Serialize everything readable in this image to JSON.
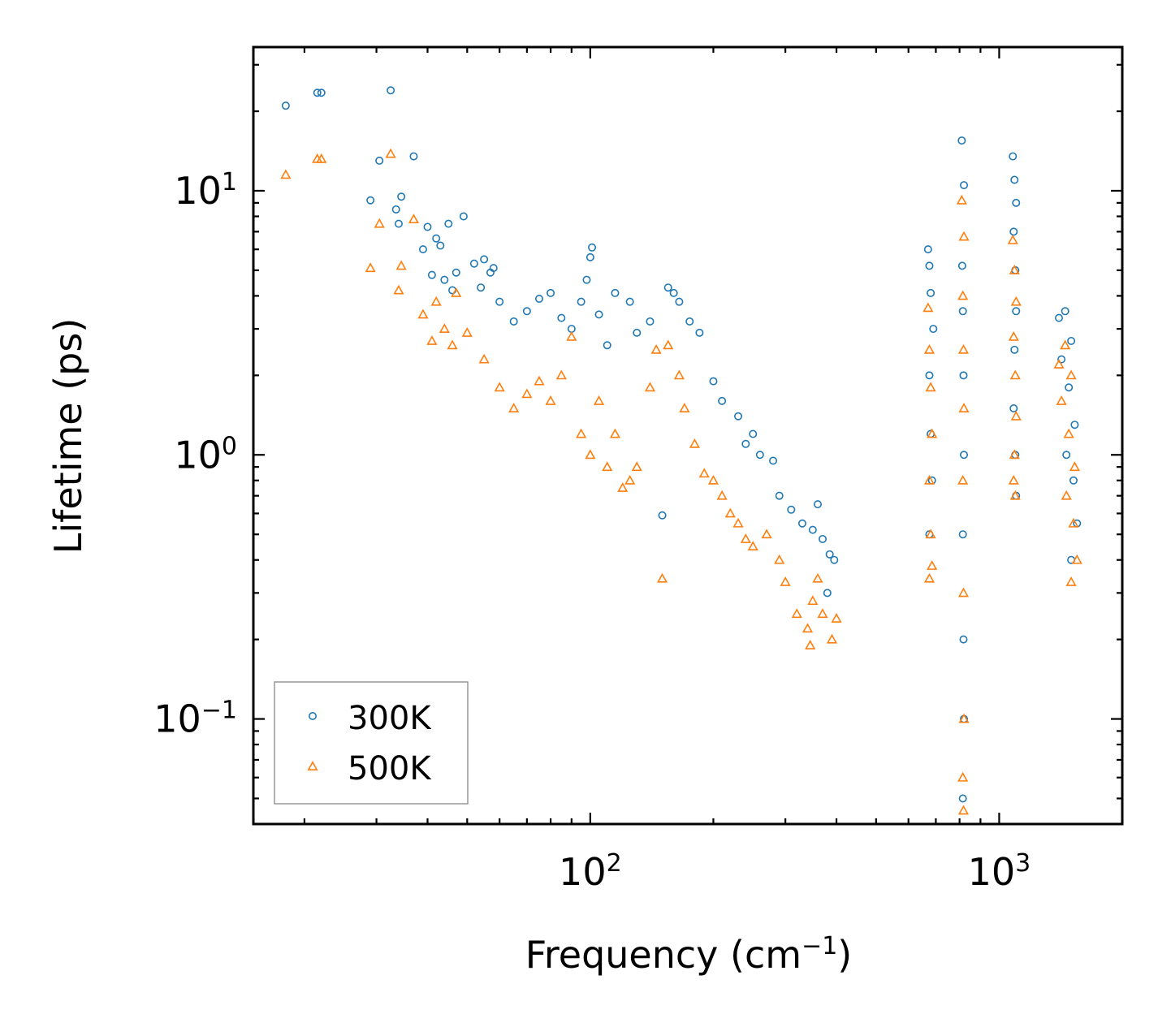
{
  "chart_data": {
    "type": "scatter",
    "title": "",
    "xlabel": "Frequency (cm",
    "xlabel_sup": "−1",
    "xlabel_tail": ")",
    "ylabel": "Lifetime (ps)",
    "xscale": "log",
    "yscale": "log",
    "xlim": [
      15,
      2000
    ],
    "ylim": [
      0.04,
      35
    ],
    "x_ticks": [
      {
        "value": 100,
        "base": "10",
        "exp": "2"
      },
      {
        "value": 1000,
        "base": "10",
        "exp": "3"
      }
    ],
    "y_ticks": [
      {
        "value": 0.1,
        "base": "10",
        "exp": "−1"
      },
      {
        "value": 1,
        "base": "10",
        "exp": "0"
      },
      {
        "value": 10,
        "base": "10",
        "exp": "1"
      }
    ],
    "legend_position": "lower-left",
    "series": [
      {
        "name": "300K",
        "marker": "circle",
        "color": "#1f77b4",
        "points": [
          [
            18,
            21
          ],
          [
            21.5,
            23.5
          ],
          [
            22,
            23.5
          ],
          [
            29,
            9.2
          ],
          [
            30.5,
            13
          ],
          [
            32.5,
            24
          ],
          [
            33.5,
            8.5
          ],
          [
            34,
            7.5
          ],
          [
            34.5,
            9.5
          ],
          [
            37,
            13.5
          ],
          [
            39,
            6
          ],
          [
            40,
            7.3
          ],
          [
            41,
            4.8
          ],
          [
            42,
            6.6
          ],
          [
            43,
            6.2
          ],
          [
            44,
            4.6
          ],
          [
            45,
            7.5
          ],
          [
            46,
            4.2
          ],
          [
            47,
            4.9
          ],
          [
            49,
            8
          ],
          [
            52,
            5.3
          ],
          [
            54,
            4.3
          ],
          [
            55,
            5.5
          ],
          [
            57,
            4.9
          ],
          [
            58,
            5.1
          ],
          [
            60,
            3.8
          ],
          [
            65,
            3.2
          ],
          [
            70,
            3.5
          ],
          [
            75,
            3.9
          ],
          [
            80,
            4.1
          ],
          [
            85,
            3.3
          ],
          [
            90,
            3.0
          ],
          [
            95,
            3.8
          ],
          [
            98,
            4.6
          ],
          [
            100,
            5.6
          ],
          [
            101,
            6.1
          ],
          [
            105,
            3.4
          ],
          [
            110,
            2.6
          ],
          [
            115,
            4.1
          ],
          [
            125,
            3.8
          ],
          [
            130,
            2.9
          ],
          [
            140,
            3.2
          ],
          [
            150,
            0.59
          ],
          [
            155,
            4.3
          ],
          [
            160,
            4.1
          ],
          [
            165,
            3.8
          ],
          [
            175,
            3.2
          ],
          [
            185,
            2.9
          ],
          [
            200,
            1.9
          ],
          [
            210,
            1.6
          ],
          [
            230,
            1.4
          ],
          [
            240,
            1.1
          ],
          [
            250,
            1.2
          ],
          [
            260,
            1.0
          ],
          [
            280,
            0.95
          ],
          [
            290,
            0.7
          ],
          [
            310,
            0.62
          ],
          [
            330,
            0.55
          ],
          [
            350,
            0.52
          ],
          [
            370,
            0.48
          ],
          [
            385,
            0.42
          ],
          [
            395,
            0.4
          ],
          [
            360,
            0.65
          ],
          [
            380,
            0.3
          ],
          [
            670,
            6.0
          ],
          [
            675,
            5.2
          ],
          [
            680,
            4.1
          ],
          [
            690,
            3.0
          ],
          [
            675,
            2.0
          ],
          [
            680,
            1.2
          ],
          [
            685,
            0.8
          ],
          [
            675,
            0.5
          ],
          [
            810,
            15.5
          ],
          [
            820,
            10.5
          ],
          [
            812,
            5.2
          ],
          [
            815,
            3.5
          ],
          [
            818,
            2.0
          ],
          [
            820,
            1.0
          ],
          [
            815,
            0.5
          ],
          [
            818,
            0.2
          ],
          [
            820,
            0.1
          ],
          [
            815,
            0.05
          ],
          [
            1080,
            13.5
          ],
          [
            1090,
            11
          ],
          [
            1100,
            9
          ],
          [
            1085,
            7
          ],
          [
            1095,
            5
          ],
          [
            1100,
            3.5
          ],
          [
            1090,
            2.5
          ],
          [
            1085,
            1.5
          ],
          [
            1095,
            1.0
          ],
          [
            1100,
            0.7
          ],
          [
            1400,
            3.3
          ],
          [
            1450,
            3.5
          ],
          [
            1500,
            2.7
          ],
          [
            1420,
            2.3
          ],
          [
            1480,
            1.8
          ],
          [
            1530,
            1.3
          ],
          [
            1460,
            1.0
          ],
          [
            1520,
            0.8
          ],
          [
            1550,
            0.55
          ],
          [
            1500,
            0.4
          ]
        ]
      },
      {
        "name": "500K",
        "marker": "triangle",
        "color": "#ff7f0e",
        "points": [
          [
            18,
            11.5
          ],
          [
            21.5,
            13.2
          ],
          [
            22,
            13.2
          ],
          [
            29,
            5.1
          ],
          [
            30.5,
            7.5
          ],
          [
            32.5,
            13.8
          ],
          [
            34,
            4.2
          ],
          [
            34.5,
            5.2
          ],
          [
            37,
            7.8
          ],
          [
            39,
            3.4
          ],
          [
            41,
            2.7
          ],
          [
            42,
            3.8
          ],
          [
            44,
            3.0
          ],
          [
            46,
            2.6
          ],
          [
            47,
            4.1
          ],
          [
            50,
            2.9
          ],
          [
            55,
            2.3
          ],
          [
            60,
            1.8
          ],
          [
            65,
            1.5
          ],
          [
            70,
            1.7
          ],
          [
            75,
            1.9
          ],
          [
            80,
            1.6
          ],
          [
            85,
            2.0
          ],
          [
            90,
            2.8
          ],
          [
            95,
            1.2
          ],
          [
            100,
            1.0
          ],
          [
            105,
            1.6
          ],
          [
            110,
            0.9
          ],
          [
            115,
            1.2
          ],
          [
            120,
            0.75
          ],
          [
            125,
            0.8
          ],
          [
            130,
            0.9
          ],
          [
            140,
            1.8
          ],
          [
            145,
            2.5
          ],
          [
            150,
            0.34
          ],
          [
            155,
            2.6
          ],
          [
            165,
            2.0
          ],
          [
            170,
            1.5
          ],
          [
            180,
            1.1
          ],
          [
            190,
            0.85
          ],
          [
            200,
            0.8
          ],
          [
            210,
            0.7
          ],
          [
            220,
            0.6
          ],
          [
            230,
            0.55
          ],
          [
            240,
            0.48
          ],
          [
            250,
            0.45
          ],
          [
            270,
            0.5
          ],
          [
            290,
            0.4
          ],
          [
            300,
            0.33
          ],
          [
            320,
            0.25
          ],
          [
            340,
            0.22
          ],
          [
            350,
            0.28
          ],
          [
            360,
            0.34
          ],
          [
            370,
            0.25
          ],
          [
            390,
            0.2
          ],
          [
            400,
            0.24
          ],
          [
            345,
            0.19
          ],
          [
            670,
            3.6
          ],
          [
            675,
            2.5
          ],
          [
            680,
            1.8
          ],
          [
            685,
            1.2
          ],
          [
            675,
            0.8
          ],
          [
            680,
            0.5
          ],
          [
            685,
            0.38
          ],
          [
            675,
            0.34
          ],
          [
            810,
            9.2
          ],
          [
            820,
            6.7
          ],
          [
            815,
            4.0
          ],
          [
            818,
            2.5
          ],
          [
            820,
            1.5
          ],
          [
            815,
            0.8
          ],
          [
            818,
            0.3
          ],
          [
            820,
            0.1
          ],
          [
            815,
            0.06
          ],
          [
            818,
            0.045
          ],
          [
            1080,
            6.5
          ],
          [
            1090,
            5.0
          ],
          [
            1100,
            3.8
          ],
          [
            1085,
            2.8
          ],
          [
            1095,
            2.0
          ],
          [
            1100,
            1.4
          ],
          [
            1090,
            1.0
          ],
          [
            1085,
            0.8
          ],
          [
            1095,
            0.7
          ],
          [
            1400,
            2.2
          ],
          [
            1450,
            2.6
          ],
          [
            1500,
            2.0
          ],
          [
            1420,
            1.6
          ],
          [
            1480,
            1.2
          ],
          [
            1530,
            0.9
          ],
          [
            1460,
            0.7
          ],
          [
            1520,
            0.55
          ],
          [
            1550,
            0.4
          ],
          [
            1500,
            0.33
          ]
        ]
      }
    ]
  }
}
